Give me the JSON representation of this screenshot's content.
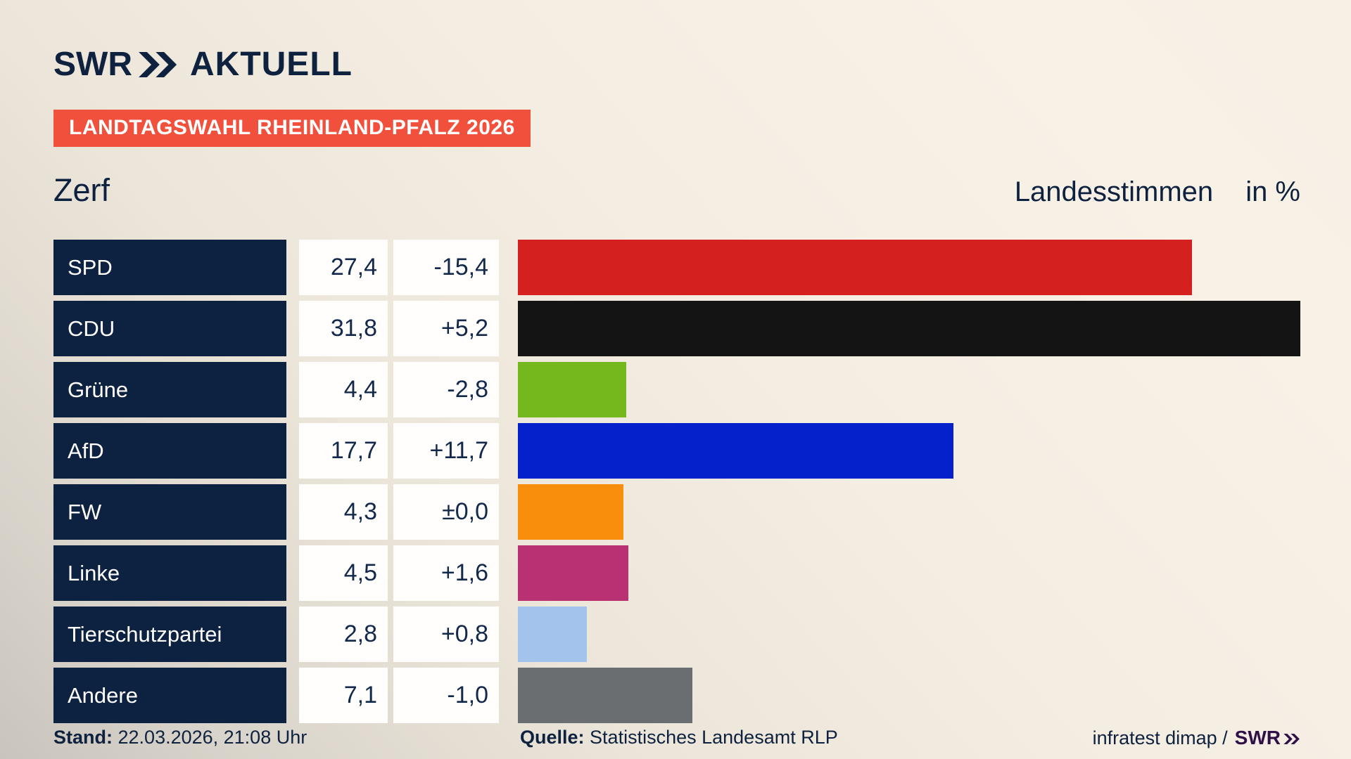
{
  "header": {
    "logo_swr": "SWR",
    "logo_aktuell": "AKTUELL",
    "banner": "LANDTAGSWAHL RHEINLAND-PFALZ 2026",
    "title": "Zerf",
    "subtitle": "Landesstimmen",
    "unit": "in %"
  },
  "chart_data": {
    "type": "bar",
    "orientation": "horizontal",
    "title": "Landtagswahl Rheinland-Pfalz 2026 — Zerf, Landesstimmen in %",
    "categories": [
      "SPD",
      "CDU",
      "Grüne",
      "AfD",
      "FW",
      "Linke",
      "Tierschutzpartei",
      "Andere"
    ],
    "values": [
      27.4,
      31.8,
      4.4,
      17.7,
      4.3,
      4.5,
      2.8,
      7.1
    ],
    "value_labels": [
      "27,4",
      "31,8",
      "4,4",
      "17,7",
      "4,3",
      "4,5",
      "2,8",
      "7,1"
    ],
    "diff_labels": [
      "-15,4",
      "+5,2",
      "-2,8",
      "+11,7",
      "±0,0",
      "+1,6",
      "+0,8",
      "-1,0"
    ],
    "bar_colors": [
      "#d42120",
      "#141414",
      "#74b81e",
      "#0521cc",
      "#f98e0d",
      "#ba3173",
      "#a3c3ed",
      "#6b6e70"
    ],
    "xmax": 31.8,
    "unit": "%",
    "legend": "none",
    "grid": false
  },
  "footer": {
    "stand_label": "Stand:",
    "stand_value": "22.03.2026, 21:08 Uhr",
    "quelle_label": "Quelle:",
    "quelle_value": "Statistisches Landesamt RLP",
    "credit_text": "infratest dimap /",
    "credit_logo": "SWR"
  },
  "colors": {
    "navy": "#0d2240",
    "banner_red": "#f1503c",
    "value_text": "#12294b",
    "credit_purple": "#2f1147",
    "background_light": "#f8f1e6",
    "background_dark": "#c9c4bc"
  }
}
